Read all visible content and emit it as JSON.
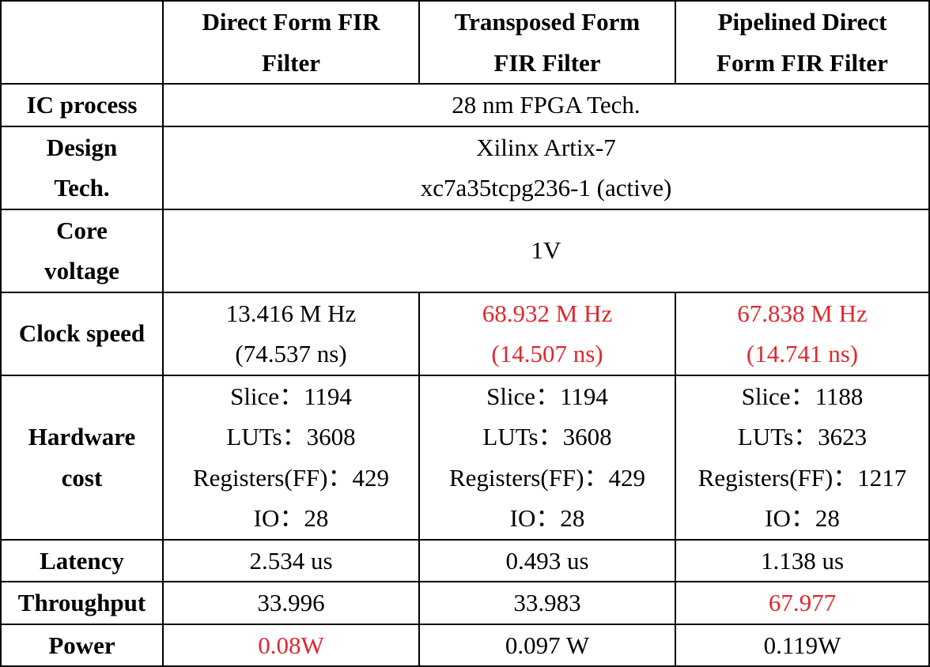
{
  "colors": {
    "highlight": "#e0282e",
    "text": "#000000",
    "border": "#000000"
  },
  "header": {
    "corner": "",
    "col1": [
      "Direct Form FIR",
      "Filter"
    ],
    "col2": [
      "Transposed Form",
      "FIR Filter"
    ],
    "col3": [
      "Pipelined Direct",
      "Form FIR Filter"
    ]
  },
  "rows": {
    "ic_process": {
      "label": "IC process",
      "value": "28 nm FPGA Tech."
    },
    "design_tech": {
      "label": [
        "Design",
        "Tech."
      ],
      "value": [
        "Xilinx Artix-7",
        "xc7a35tcpg236-1 (active)"
      ]
    },
    "core_voltage": {
      "label": [
        "Core",
        "voltage"
      ],
      "value": "1V"
    },
    "clock_speed": {
      "label": "Clock speed",
      "direct": [
        "13.416 M Hz",
        "(74.537 ns)"
      ],
      "transposed": [
        "68.932 M Hz",
        "(14.507 ns)"
      ],
      "pipelined": [
        "67.838 M Hz",
        "(14.741 ns)"
      ]
    },
    "hardware_cost": {
      "label": [
        "Hardware",
        "cost"
      ],
      "direct": [
        "Slice：1194",
        "LUTs：3608",
        "Registers(FF)：429",
        "IO：28"
      ],
      "transposed": [
        "Slice：1194",
        "LUTs：3608",
        "Registers(FF)：429",
        "IO：28"
      ],
      "pipelined": [
        "Slice：1188",
        "LUTs：3623",
        "Registers(FF)：1217",
        "IO：28"
      ]
    },
    "latency": {
      "label": "Latency",
      "direct": "2.534 us",
      "transposed": "0.493 us",
      "pipelined": "1.138 us"
    },
    "throughput": {
      "label": "Throughput",
      "direct": "33.996",
      "transposed": "33.983",
      "pipelined": "67.977"
    },
    "power": {
      "label": "Power",
      "direct": "0.08W",
      "transposed": "0.097 W",
      "pipelined": "0.119W"
    }
  }
}
